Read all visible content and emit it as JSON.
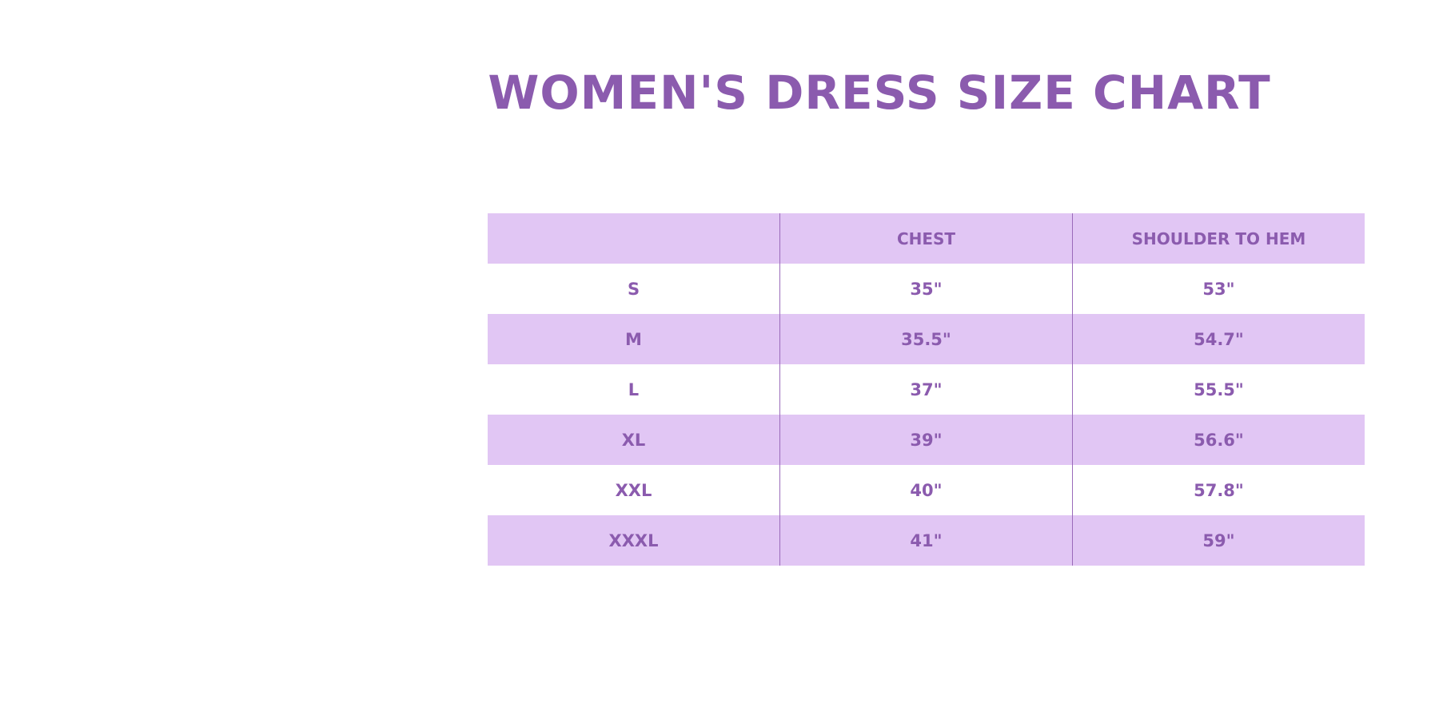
{
  "title": "WOMEN'S DRESS SIZE CHART",
  "colors": {
    "accent": "#8B5BAE",
    "row_shade": "#E1C6F4"
  },
  "table": {
    "headers": [
      "",
      "CHEST",
      "SHOULDER TO HEM"
    ],
    "rows": [
      [
        "S",
        "35\"",
        "53\""
      ],
      [
        "M",
        "35.5\"",
        "54.7\""
      ],
      [
        "L",
        "37\"",
        "55.5\""
      ],
      [
        "XL",
        "39\"",
        "56.6\""
      ],
      [
        "XXL",
        "40\"",
        "57.8\""
      ],
      [
        "XXXL",
        "41\"",
        "59\""
      ]
    ]
  }
}
